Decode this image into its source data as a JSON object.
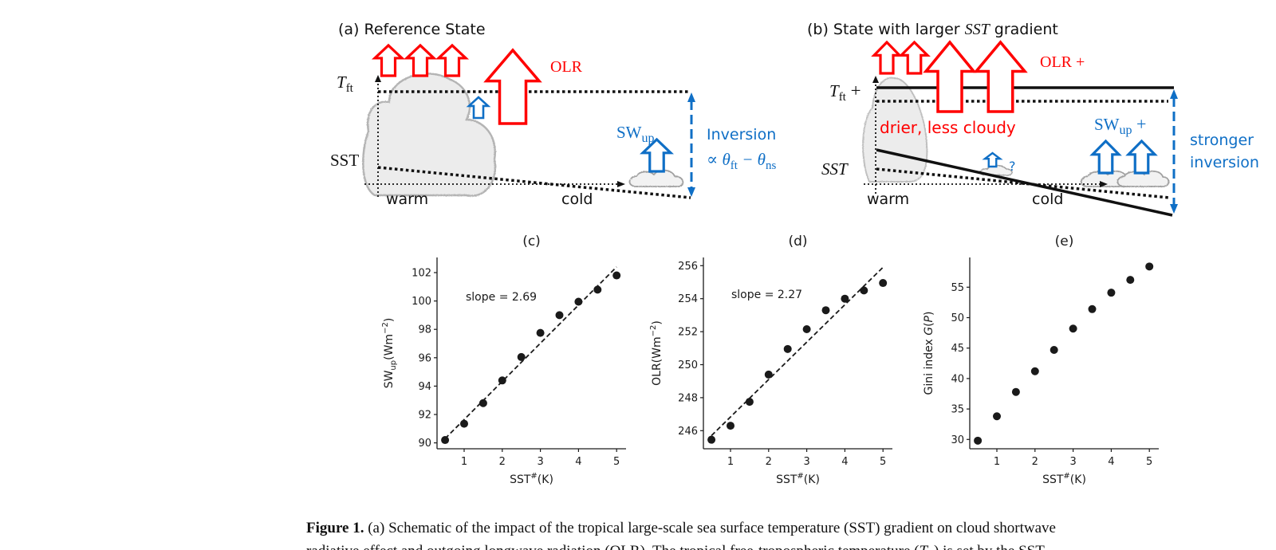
{
  "diagram_a": {
    "title": "(a) Reference State",
    "tft_main": "T",
    "tft_sub": "ft",
    "sst_label": "SST",
    "olr_label": "OLR",
    "swup_main": "SW",
    "swup_sub": "up",
    "inversion_line1": "Inversion",
    "inversion_line2_a": "∝ θ",
    "inversion_line2_sub1": "ft",
    "inversion_line2_b": " − θ",
    "inversion_line2_sub2": "ns",
    "warm_label": "warm",
    "cold_label": "cold"
  },
  "diagram_b": {
    "title_a": "(b) State with larger ",
    "title_sst": "SST",
    "title_b": " gradient",
    "tft_main": "T",
    "tft_sub": "ft",
    "tft_suffix": " +",
    "sst_label": "SST",
    "olr_label": "OLR +",
    "drier_label": "drier, less cloudy",
    "swup_main": "SW",
    "swup_sub": "up",
    "swup_suffix": " +",
    "question_mark": "?",
    "stronger_line1": "stronger",
    "stronger_line2": "inversion",
    "warm_label": "warm",
    "cold_label": "cold"
  },
  "colors": {
    "olr": "#ff0000",
    "sw": "#0f6fc6",
    "cloud_fill": "#ececec",
    "cloud_edge": "#a8a8a8",
    "ink": "#1a1a1a"
  },
  "chart_data": [
    {
      "type": "scatter",
      "title": "(c)",
      "xlabel_main": "SST",
      "xlabel_sup": "#",
      "xlabel_unit": "(K)",
      "ylabel_main": "SW",
      "ylabel_sub": "up",
      "ylabel_unit": "(Wm",
      "ylabel_sup": "−2",
      "ylabel_close": ")",
      "x": [
        0.5,
        1,
        1.5,
        2,
        2.5,
        3,
        3.5,
        4,
        4.5,
        5
      ],
      "y": [
        90.2,
        91.35,
        92.8,
        94.4,
        96.05,
        97.75,
        99.0,
        99.95,
        100.8,
        101.8
      ],
      "fit_line": {
        "x": [
          0.5,
          5.0
        ],
        "y": [
          90.3,
          102.4
        ],
        "style": "dashed"
      },
      "annotation": "slope = 2.69",
      "xticks": [
        "1",
        "2",
        "3",
        "4",
        "5"
      ],
      "yticks": [
        "90",
        "92",
        "94",
        "96",
        "98",
        "100",
        "102"
      ],
      "grid": false
    },
    {
      "type": "scatter",
      "title": "(d)",
      "xlabel_main": "SST",
      "xlabel_sup": "#",
      "xlabel_unit": "(K)",
      "ylabel_main": "OLR",
      "ylabel_sub": "",
      "ylabel_unit": "(Wm",
      "ylabel_sup": "−2",
      "ylabel_close": ")",
      "x": [
        0.5,
        1,
        1.5,
        2,
        2.5,
        3,
        3.5,
        4,
        4.5,
        5
      ],
      "y": [
        245.45,
        246.3,
        247.75,
        249.4,
        250.95,
        252.15,
        253.3,
        254.0,
        254.5,
        254.95
      ],
      "fit_line": {
        "x": [
          0.5,
          5.0
        ],
        "y": [
          245.7,
          255.9
        ],
        "style": "dashed"
      },
      "annotation": "slope = 2.27",
      "xticks": [
        "1",
        "2",
        "3",
        "4",
        "5"
      ],
      "yticks": [
        "246",
        "248",
        "250",
        "252",
        "254",
        "256"
      ],
      "grid": false
    },
    {
      "type": "scatter",
      "title": "(e)",
      "xlabel_main": "SST",
      "xlabel_sup": "#",
      "xlabel_unit": "(K)",
      "ylabel_main": "Gini index ",
      "ylabel_italic": "G",
      "ylabel_rest": "(",
      "ylabel_italic2": "P",
      "ylabel_close": ")",
      "x": [
        0.5,
        1,
        1.5,
        2,
        2.5,
        3,
        3.5,
        4,
        4.5,
        5
      ],
      "y": [
        29.8,
        33.8,
        37.8,
        41.2,
        44.7,
        48.2,
        51.4,
        54.1,
        56.2,
        58.4
      ],
      "xticks": [
        "1",
        "2",
        "3",
        "4",
        "5"
      ],
      "yticks": [
        "30",
        "35",
        "40",
        "45",
        "50",
        "55"
      ],
      "grid": false
    }
  ],
  "caption": {
    "label": "Figure 1.",
    "line1": " (a) Schematic of the impact of the tropical large-scale sea surface temperature (SST) gradient on cloud shortwave",
    "line2_a": "radiative effect and outgoing longwave radiation (OLR). The tropical free-tropospheric temperature (",
    "line2_t": "T",
    "line2_sub": "ft",
    "line2_b": ") is set by the SST"
  }
}
